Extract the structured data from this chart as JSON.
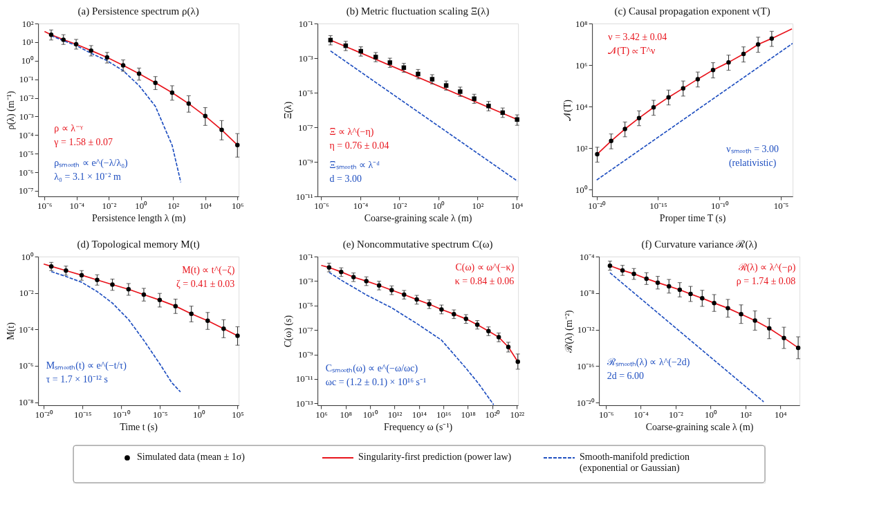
{
  "chart_data": [
    {
      "type": "line",
      "title": "(a) Persistence spectrum ρ(λ)",
      "xlabel": "Persistence length λ (m)",
      "ylabel": "ρ(λ) (m⁻¹)",
      "log": "xy",
      "legend": "bottom",
      "xlim": [
        4e-07,
        1200000.0
      ],
      "ylim": [
        5e-08,
        100
      ],
      "xticks": [
        {
          "value": 1e-06,
          "label": "10⁻⁶"
        },
        {
          "value": 0.0001,
          "label": "10⁻⁴"
        },
        {
          "value": 0.01,
          "label": "10⁻²"
        },
        {
          "value": 1,
          "label": "10⁰"
        },
        {
          "value": 100.0,
          "label": "10²"
        },
        {
          "value": 10000.0,
          "label": "10⁴"
        },
        {
          "value": 1000000.0,
          "label": "10⁶"
        }
      ],
      "yticks": [
        {
          "value": 100,
          "label": "10²"
        },
        {
          "value": 10,
          "label": "10¹"
        },
        {
          "value": 1,
          "label": "10⁰"
        },
        {
          "value": 0.1,
          "label": "10⁻¹"
        },
        {
          "value": 0.01,
          "label": "10⁻²"
        },
        {
          "value": 0.001,
          "label": "10⁻³"
        },
        {
          "value": 0.0001,
          "label": "10⁻⁴"
        },
        {
          "value": 1e-05,
          "label": "10⁻⁵"
        },
        {
          "value": 1e-06,
          "label": "10⁻⁶"
        },
        {
          "value": 1e-07,
          "label": "10⁻⁷"
        }
      ],
      "x": [
        2.6e-06,
        1.5e-05,
        9.3e-05,
        0.00079,
        0.0078,
        0.078,
        0.76,
        7.9,
        87,
        930,
        10000.0,
        105000.0,
        1000000.0
      ],
      "series": [
        {
          "name": "Simulated data (mean ± 1σ)",
          "type": "scatter",
          "marker": "circle",
          "color": "#000000",
          "values": [
            25,
            13.5,
            7.7,
            3.5,
            1.5,
            0.56,
            0.2,
            0.065,
            0.019,
            0.0049,
            0.00105,
            0.00019,
            2.9e-05
          ],
          "errors": [
            [
              13,
              45
            ],
            [
              7.5,
              25
            ],
            [
              4.2,
              14
            ],
            [
              1.8,
              6.5
            ],
            [
              0.75,
              2.8
            ],
            [
              0.27,
              1.1
            ],
            [
              0.09,
              0.4
            ],
            [
              0.028,
              0.14
            ],
            [
              0.0075,
              0.045
            ],
            [
              0.0017,
              0.013
            ],
            [
              0.00033,
              0.003
            ],
            [
              5.5e-05,
              0.0006
            ],
            [
              6.5e-06,
              0.00012
            ]
          ]
        },
        {
          "name": "Singularity-first prediction (power law)",
          "type": "line",
          "color": "#e8141c",
          "line_style": "solid",
          "x": [
            1e-06,
            2.6e-06,
            1.5e-05,
            9.3e-05,
            0.00079,
            0.0078,
            0.078,
            0.76,
            7.9,
            87,
            930,
            10000.0,
            105000.0,
            1000000.0
          ],
          "values": [
            37,
            25,
            13.5,
            7.7,
            3.5,
            1.5,
            0.56,
            0.2,
            0.065,
            0.019,
            0.0049,
            0.00105,
            0.00019,
            2.9e-05
          ]
        },
        {
          "name": "Smooth-manifold prediction\n(exponential or Gaussian)",
          "type": "line",
          "color": "#1f4fc0",
          "line_style": "dashed",
          "x": [
            2.6e-06,
            1.5e-05,
            9.3e-05,
            0.00079,
            0.0078,
            0.078,
            0.76,
            7.9,
            87,
            300
          ],
          "values": [
            22,
            12,
            6.6,
            2.5,
            1.0,
            0.29,
            0.046,
            0.0035,
            2.8e-05,
            2.9e-07
          ]
        }
      ],
      "annotations": [
        "ρ ∝ λ⁻ᵞ",
        "γ = 1.58 ± 0.07",
        "ρₛₘₒₒₜₕ ∝ e^(−λ/λ₀)",
        "λ₀ = 3.1 × 10⁻² m"
      ]
    },
    {
      "type": "line",
      "title": "(b) Metric fluctuation scaling Ξ(λ)",
      "xlabel": "Coarse-graining scale λ (m)",
      "ylabel": "Ξ(λ)",
      "log": "xy",
      "xlim": [
        6.5e-07,
        12000.0
      ],
      "ylim": [
        1e-11,
        0.1
      ],
      "xticks": [
        {
          "value": 1e-06,
          "label": "10⁻⁶"
        },
        {
          "value": 0.0001,
          "label": "10⁻⁴"
        },
        {
          "value": 0.01,
          "label": "10⁻²"
        },
        {
          "value": 1,
          "label": "10⁰"
        },
        {
          "value": 100.0,
          "label": "10²"
        },
        {
          "value": 10000.0,
          "label": "10⁴"
        }
      ],
      "yticks": [
        {
          "value": 0.1,
          "label": "10⁻¹"
        },
        {
          "value": 0.001,
          "label": "10⁻³"
        },
        {
          "value": 1e-05,
          "label": "10⁻⁵"
        },
        {
          "value": 1e-07,
          "label": "10⁻⁷"
        },
        {
          "value": 1e-09,
          "label": "10⁻⁹"
        },
        {
          "value": 1e-11,
          "label": "10⁻¹¹"
        }
      ],
      "x": [
        3e-06,
        1.8e-05,
        0.000107,
        0.00062,
        0.0033,
        0.017,
        0.091,
        0.48,
        2.5,
        13,
        68,
        370,
        1950,
        10700.0
      ],
      "series": [
        {
          "type": "scatter",
          "marker": "square",
          "color": "#000000",
          "values": [
            0.011,
            0.0052,
            0.0025,
            0.00115,
            0.00055,
            0.00028,
            0.00012,
            6e-05,
            2.6e-05,
            1.15e-05,
            4.5e-06,
            1.7e-06,
            7e-07,
            2.8e-07
          ],
          "errors": [
            [
              0.0058,
              0.02
            ],
            [
              0.0027,
              0.0094
            ],
            [
              0.0013,
              0.0045
            ],
            [
              0.00061,
              0.0021
            ],
            [
              0.00029,
              0.00099
            ],
            [
              0.00015,
              0.0005
            ],
            [
              6.3e-05,
              0.00022
            ],
            [
              3.2e-05,
              0.00011
            ],
            [
              1.4e-05,
              4.7e-05
            ],
            [
              6.1e-06,
              2.1e-05
            ],
            [
              2.4e-06,
              8.1e-06
            ],
            [
              8.9e-07,
              3.1e-06
            ],
            [
              3.7e-07,
              1.3e-06
            ],
            [
              1.3e-07,
              5.2e-07
            ]
          ]
        },
        {
          "type": "line",
          "color": "#e8141c",
          "line_style": "solid",
          "x": [
            3e-06,
            10700.0
          ],
          "values": [
            0.011,
            2.8e-07
          ]
        },
        {
          "type": "line",
          "color": "#1f4fc0",
          "line_style": "dashed",
          "x": [
            3e-06,
            11000.0
          ],
          "values": [
            0.0026,
            7.8e-11
          ]
        }
      ],
      "annotations": [
        "Ξ ∝ λ^(−η)",
        "η = 0.76 ± 0.04",
        "Ξₛₘₒₒₜₕ ∝ λ⁻ᵈ",
        "d = 3.00"
      ]
    },
    {
      "type": "line",
      "title": "(c) Causal propagation exponent ν(T)",
      "xlabel": "Proper time T (s)",
      "ylabel": "𝒩(T)",
      "log": "xy",
      "xlim": [
        4.2e-21,
        9.1e-05
      ],
      "ylim": [
        0.47,
        100000000.0
      ],
      "xticks": [
        {
          "value": 1e-20,
          "label": "10⁻²⁰"
        },
        {
          "value": 1e-15,
          "label": "10⁻¹⁵"
        },
        {
          "value": 1e-10,
          "label": "10⁻¹⁰"
        },
        {
          "value": 1e-05,
          "label": "10⁻⁵"
        }
      ],
      "yticks": [
        {
          "value": 1,
          "label": "10⁰"
        },
        {
          "value": 100,
          "label": "10²"
        },
        {
          "value": 10000.0,
          "label": "10⁴"
        },
        {
          "value": 1000000.0,
          "label": "10⁶"
        },
        {
          "value": 100000000.0,
          "label": "10⁸"
        }
      ],
      "x": [
        1.1e-20,
        1.5e-19,
        2e-18,
        2.8e-17,
        4.3e-16,
        7.1e-15,
        1.1e-13,
        1.7e-12,
        3e-11,
        5.5e-10,
        9.1e-09,
        1.4e-07,
        1.8e-06
      ],
      "series": [
        {
          "type": "scatter",
          "marker": "circle",
          "color": "#000000",
          "values": [
            51,
            220,
            830,
            2800,
            9100,
            28000.0,
            76000.0,
            210000.0,
            580000.0,
            1350000.0,
            3400000.0,
            9800000.0,
            19000000.0
          ],
          "errors": [
            [
              21,
              110
            ],
            [
              92,
              480
            ],
            [
              350,
              1800
            ],
            [
              1200,
              6200
            ],
            [
              3800,
              20000.0
            ],
            [
              12000.0,
              62000.0
            ],
            [
              32000.0,
              170000.0
            ],
            [
              88000.0,
              460000.0
            ],
            [
              240000.0,
              1300000.0
            ],
            [
              560000.0,
              3000000.0
            ],
            [
              1400000.0,
              7500000.0
            ],
            [
              4100000.0,
              22000000.0
            ],
            [
              7900000.0,
              42000000.0
            ]
          ]
        },
        {
          "type": "line",
          "color": "#e8141c",
          "line_style": "solid",
          "x": [
            1.1e-20,
            1.5e-19,
            2e-18,
            2.8e-17,
            4.3e-16,
            7.1e-15,
            1.1e-13,
            1.7e-12,
            3e-11,
            5.5e-10,
            9.1e-09,
            1.4e-07,
            1.8e-06,
            8e-05
          ],
          "values": [
            51,
            220,
            830,
            2800,
            9100,
            28000.0,
            76000.0,
            210000.0,
            580000.0,
            1350000.0,
            3400000.0,
            9800000.0,
            19000000.0,
            55000000.0
          ]
        },
        {
          "type": "line",
          "color": "#1f4fc0",
          "line_style": "dashed",
          "x": [
            1e-20,
            9e-05
          ],
          "values": [
            2.9,
            11000000.0
          ]
        }
      ],
      "annotations": [
        "ν = 3.42 ± 0.04",
        "𝒩(T) ∝ T^ν",
        "νₛₘₒₒₜₕ = 3.00",
        "(relativistic)"
      ]
    },
    {
      "type": "line",
      "title": "(d) Topological memory M(t)",
      "xlabel": "Time t (s)",
      "ylabel": "M(t)",
      "log": "xy",
      "xlim": [
        1.9e-21,
        140000.0
      ],
      "ylim": [
        6.8e-09,
        1
      ],
      "xticks": [
        {
          "value": 1e-20,
          "label": "10⁻²⁰"
        },
        {
          "value": 1e-15,
          "label": "10⁻¹⁵"
        },
        {
          "value": 1e-10,
          "label": "10⁻¹⁰"
        },
        {
          "value": 1e-05,
          "label": "10⁻⁵"
        },
        {
          "value": 1,
          "label": "10⁰"
        },
        {
          "value": 100000.0,
          "label": "10⁵"
        }
      ],
      "yticks": [
        {
          "value": 1,
          "label": "10⁰"
        },
        {
          "value": 0.01,
          "label": "10⁻²"
        },
        {
          "value": 0.0001,
          "label": "10⁻⁴"
        },
        {
          "value": 1e-06,
          "label": "10⁻⁶"
        },
        {
          "value": 1e-08,
          "label": "10⁻⁸"
        }
      ],
      "x": [
        9.5e-20,
        7.4e-18,
        7.8e-16,
        7.8e-14,
        7.2e-12,
        8.7e-10,
        8.1e-08,
        9.1e-06,
        0.001,
        0.11,
        14,
        1600,
        100000.0
      ],
      "series": [
        {
          "type": "scatter",
          "marker": "circle",
          "color": "#000000",
          "values": [
            0.29,
            0.17,
            0.095,
            0.052,
            0.029,
            0.016,
            0.0081,
            0.0041,
            0.0019,
            0.00072,
            0.0003,
            0.00011,
            4.5e-05
          ],
          "errors": [
            [
              0.17,
              0.48
            ],
            [
              0.095,
              0.3
            ],
            [
              0.05,
              0.17
            ],
            [
              0.027,
              0.1
            ],
            [
              0.014,
              0.058
            ],
            [
              0.0075,
              0.033
            ],
            [
              0.0036,
              0.018
            ],
            [
              0.0017,
              0.0095
            ],
            [
              0.00075,
              0.0046
            ],
            [
              0.00026,
              0.0019
            ],
            [
              0.0001,
              0.00085
            ],
            [
              3.5e-05,
              0.00034
            ],
            [
              1.35e-05,
              0.00014
            ]
          ]
        },
        {
          "type": "line",
          "color": "#e8141c",
          "line_style": "solid",
          "x": [
            1e-20,
            9.5e-20,
            7.4e-18,
            7.8e-16,
            7.8e-14,
            7.2e-12,
            8.7e-10,
            8.1e-08,
            9.1e-06,
            0.001,
            0.11,
            14,
            1600,
            100000.0
          ],
          "values": [
            0.39,
            0.29,
            0.17,
            0.095,
            0.052,
            0.029,
            0.016,
            0.0081,
            0.0041,
            0.0019,
            0.00072,
            0.0003,
            0.00011,
            4.5e-05
          ]
        },
        {
          "type": "line",
          "color": "#1f4fc0",
          "line_style": "dashed",
          "x": [
            9.5e-20,
            7.4e-18,
            7.8e-16,
            7.8e-14,
            7.2e-12,
            8.7e-10,
            8.1e-08,
            9.1e-06,
            0.00032,
            0.0043
          ],
          "values": [
            0.15,
            0.081,
            0.039,
            0.012,
            0.0028,
            0.00035,
            2.5e-05,
            1.3e-06,
            1.2e-07,
            3.7e-08
          ]
        }
      ],
      "annotations": [
        "M(t) ∝ t^(−ζ)",
        "ζ = 0.41 ± 0.03",
        "Mₛₘₒₒₜₕ(t) ∝ e^(−t/τ)",
        "τ = 1.7 × 10⁻¹² s"
      ]
    },
    {
      "type": "line",
      "title": "(e) Noncommutative spectrum C(ω)",
      "xlabel": "Frequency ω (s⁻¹)",
      "ylabel": "C(ω) (s)",
      "log": "xy",
      "xlim": [
        500000.0,
        1.26e+22
      ],
      "ylim": [
        7.1e-14,
        0.1
      ],
      "xticks": [
        {
          "value": 1000000.0,
          "label": "10⁶"
        },
        {
          "value": 100000000.0,
          "label": "10⁸"
        },
        {
          "value": 10000000000.0,
          "label": "10¹⁰"
        },
        {
          "value": 1000000000000.0,
          "label": "10¹²"
        },
        {
          "value": 100000000000000.0,
          "label": "10¹⁴"
        },
        {
          "value": 1e+16,
          "label": "10¹⁶"
        },
        {
          "value": 1e+18,
          "label": "10¹⁸"
        },
        {
          "value": 1e+20,
          "label": "10²⁰"
        },
        {
          "value": 1e+22,
          "label": "10²²"
        }
      ],
      "yticks": [
        {
          "value": 0.1,
          "label": "10⁻¹"
        },
        {
          "value": 0.001,
          "label": "10⁻³"
        },
        {
          "value": 1e-05,
          "label": "10⁻⁵"
        },
        {
          "value": 1e-07,
          "label": "10⁻⁷"
        },
        {
          "value": 1e-09,
          "label": "10⁻⁹"
        },
        {
          "value": 1e-11,
          "label": "10⁻¹¹"
        },
        {
          "value": 1e-13,
          "label": "10⁻¹³"
        }
      ],
      "x": [
        4400000.0,
        43000000.0,
        440000000.0,
        4900000000.0,
        54000000000.0,
        580000000000.0,
        6000000000000.0,
        65000000000000.0,
        680000000000000.0,
        6900000000000000.0,
        7.1e+16,
        6.9e+17,
        5.8e+18,
        4.8e+19,
        3.3e+20,
        2e+21,
        1.2e+22
      ],
      "series": [
        {
          "type": "scatter",
          "marker": "circle",
          "color": "#000000",
          "values": [
            0.013,
            0.0056,
            0.0021,
            0.001,
            0.00044,
            0.00018,
            7.8e-05,
            3.1e-05,
            1.3e-05,
            4.8e-06,
            2e-06,
            8.1e-07,
            2.7e-07,
            8.1e-08,
            2.6e-08,
            4.1e-09,
            2.6e-10
          ],
          "errors": [
            [
              0.0057,
              0.029
            ],
            [
              0.0024,
              0.012
            ],
            [
              0.00091,
              0.0046
            ],
            [
              0.00043,
              0.0022
            ],
            [
              0.00019,
              0.00097
            ],
            [
              7.8e-05,
              0.0004
            ],
            [
              3.4e-05,
              0.00017
            ],
            [
              1.3e-05,
              6.8e-05
            ],
            [
              5.7e-06,
              2.9e-05
            ],
            [
              2.1e-06,
              1.1e-05
            ],
            [
              8.7e-07,
              4.4e-06
            ],
            [
              3.5e-07,
              1.8e-06
            ],
            [
              1.2e-07,
              5.9e-07
            ],
            [
              3.5e-08,
              1.8e-07
            ],
            [
              1.1e-08,
              5.7e-08
            ],
            [
              1.6e-09,
              1e-08
            ],
            [
              6.3e-11,
              1.1e-09
            ]
          ]
        },
        {
          "type": "line",
          "color": "#e8141c",
          "line_style": "solid",
          "x": [
            1000000.0,
            4400000.0,
            43000000.0,
            440000000.0,
            4900000000.0,
            54000000000.0,
            580000000000.0,
            6000000000000.0,
            65000000000000.0,
            680000000000000.0,
            6900000000000000.0,
            7.1e+16,
            6.9e+17,
            5.8e+18,
            4.8e+19,
            3.3e+20,
            2e+21,
            1.2e+22
          ],
          "values": [
            0.019,
            0.013,
            0.0056,
            0.0021,
            0.001,
            0.00044,
            0.00018,
            7.8e-05,
            3.1e-05,
            1.3e-05,
            4.8e-06,
            2e-06,
            8.1e-07,
            2.7e-07,
            8.1e-08,
            2.6e-08,
            4.1e-09,
            2.6e-10
          ]
        },
        {
          "type": "line",
          "color": "#1f4fc0",
          "line_style": "dashed",
          "x": [
            4400000.0,
            43000000.0,
            4900000000.0,
            580000000000.0,
            65000000000000.0,
            6900000000000000.0,
            6.9e+17,
            7.2e+18,
            1.26e+20
          ],
          "values": [
            0.0051,
            0.0012,
            7.4e-05,
            6.5e-06,
            3.4e-07,
            1.5e-08,
            7.6e-11,
            4.3e-12,
            7.9e-14
          ]
        }
      ],
      "annotations": [
        "C(ω) ∝ ω^(−κ)",
        "κ = 0.84 ± 0.06",
        "Cₛₘₒₒₜₕ(ω) ∝ e^(−ω/ωc)",
        "ωc = (1.2 ± 0.1) × 10¹⁶ s⁻¹"
      ]
    },
    {
      "type": "line",
      "title": "(f) Curvature variance ℛ(λ)",
      "xlabel": "Coarse-graining scale λ (m)",
      "ylabel": "ℛ(λ) (m⁻²)",
      "log": "xy",
      "xlim": [
        4e-07,
        126000.0
      ],
      "ylim": [
        5e-21,
        0.0001
      ],
      "xticks": [
        {
          "value": 1e-06,
          "label": "10⁻⁶"
        },
        {
          "value": 0.0001,
          "label": "10⁻⁴"
        },
        {
          "value": 0.01,
          "label": "10⁻²"
        },
        {
          "value": 1,
          "label": "10⁰"
        },
        {
          "value": 100.0,
          "label": "10²"
        },
        {
          "value": 10000.0,
          "label": "10⁴"
        }
      ],
      "yticks": [
        {
          "value": 0.0001,
          "label": "10⁻⁴"
        },
        {
          "value": 1e-08,
          "label": "10⁻⁸"
        },
        {
          "value": 1e-12,
          "label": "10⁻¹²"
        },
        {
          "value": 1e-16,
          "label": "10⁻¹⁶"
        },
        {
          "value": 1e-20,
          "label": "10⁻²⁰"
        }
      ],
      "x": [
        1.7e-06,
        8.9e-06,
        4e-05,
        0.00021,
        0.00093,
        0.0041,
        0.017,
        0.071,
        0.33,
        1.6,
        9.8,
        56,
        350,
        2300,
        16000.0,
        105000.0
      ],
      "series": [
        {
          "type": "scatter",
          "marker": "circle",
          "color": "#000000",
          "values": [
            1e-05,
            3.1e-06,
            1.3e-06,
            3.8e-07,
            1.4e-07,
            5.6e-08,
            2.3e-08,
            7.9e-09,
            2.7e-09,
            8.1e-10,
            2.2e-10,
            4.9e-11,
            9.8e-12,
            1.35e-12,
            1.2e-13,
            1e-14
          ],
          "errors": [
            [
              3.2e-06,
              3.2e-05
            ],
            [
              8.7e-07,
              1.1e-05
            ],
            [
              3.2e-07,
              4.9e-06
            ],
            [
              8.7e-08,
              1.7e-06
            ],
            [
              2.8e-08,
              6.8e-07
            ],
            [
              1e-08,
              3.1e-07
            ],
            [
              3.8e-09,
              1.4e-07
            ],
            [
              1.2e-09,
              5.4e-08
            ],
            [
              3.5e-10,
              2e-08
            ],
            [
              9.8e-11,
              6.8e-09
            ],
            [
              2.3e-11,
              2e-09
            ],
            [
              4.7e-12,
              5.1e-10
            ],
            [
              8.5e-13,
              1.1e-10
            ],
            [
              1e-13,
              1.7e-11
            ],
            [
              8.5e-15,
              1.8e-12
            ],
            [
              6.3e-16,
              1.6e-13
            ]
          ]
        },
        {
          "type": "line",
          "color": "#e8141c",
          "line_style": "solid",
          "x": [
            1.7e-06,
            8.9e-06,
            4e-05,
            0.00021,
            0.00093,
            0.0041,
            0.017,
            0.071,
            0.33,
            1.6,
            9.8,
            56,
            350,
            2300,
            16000.0,
            105000.0
          ],
          "values": [
            1e-05,
            3.1e-06,
            1.3e-06,
            3.8e-07,
            1.4e-07,
            5.6e-08,
            2.3e-08,
            7.9e-09,
            2.7e-09,
            8.1e-10,
            2.2e-10,
            4.9e-11,
            9.8e-12,
            1.35e-12,
            1.2e-13,
            1e-14
          ]
        },
        {
          "type": "line",
          "color": "#1f4fc0",
          "line_style": "dashed",
          "x": [
            1.7e-06,
            1100.0
          ],
          "values": [
            1.7e-06,
            1.2e-20
          ]
        }
      ],
      "annotations": [
        "ℛ(λ) ∝ λ^(−ρ)",
        "ρ = 1.74 ± 0.08",
        "ℛₛₘₒₒₜₕ(λ) ∝ λ^(−2d)",
        "2d = 6.00"
      ]
    }
  ]
}
